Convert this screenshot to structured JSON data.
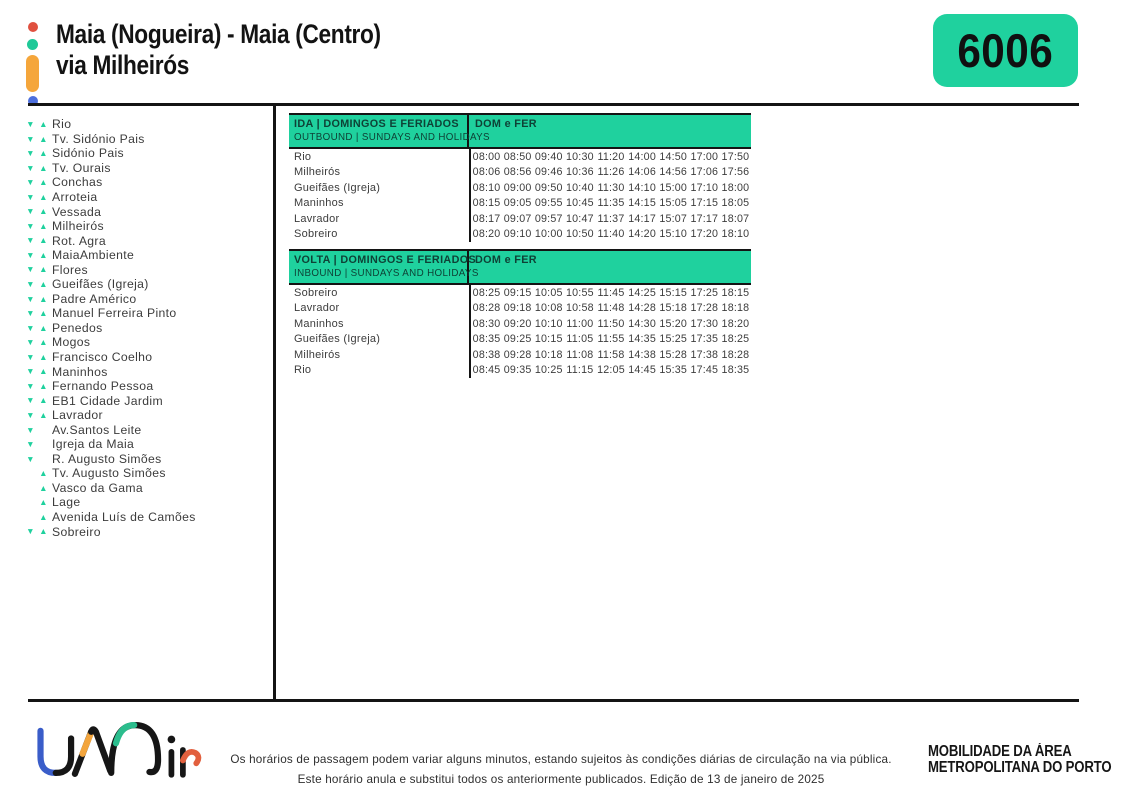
{
  "header": {
    "title_line1": "Maia (Nogueira) - Maia (Centro)",
    "title_line2": "via Milheirós",
    "route_number": "6006"
  },
  "colors": {
    "accent_green": "#1fd19e",
    "logo_red": "#e0503f",
    "logo_green": "#1fc998",
    "logo_orange": "#f5a63b",
    "logo_blue": "#4d6fdd"
  },
  "icons": {
    "down_triangle": "▼",
    "up_triangle": "▲"
  },
  "stops": [
    {
      "name": "Rio",
      "down": true,
      "up": true
    },
    {
      "name": "Tv. Sidónio Pais",
      "down": true,
      "up": true
    },
    {
      "name": "Sidónio Pais",
      "down": true,
      "up": true
    },
    {
      "name": "Tv. Ourais",
      "down": true,
      "up": true
    },
    {
      "name": "Conchas",
      "down": true,
      "up": true
    },
    {
      "name": "Arroteia",
      "down": true,
      "up": true
    },
    {
      "name": "Vessada",
      "down": true,
      "up": true
    },
    {
      "name": "Milheirós",
      "down": true,
      "up": true
    },
    {
      "name": "Rot. Agra",
      "down": true,
      "up": true
    },
    {
      "name": "MaiaAmbiente",
      "down": true,
      "up": true
    },
    {
      "name": "Flores",
      "down": true,
      "up": true
    },
    {
      "name": "Gueifães (Igreja)",
      "down": true,
      "up": true
    },
    {
      "name": "Padre Américo",
      "down": true,
      "up": true
    },
    {
      "name": "Manuel Ferreira Pinto",
      "down": true,
      "up": true
    },
    {
      "name": "Penedos",
      "down": true,
      "up": true
    },
    {
      "name": "Mogos",
      "down": true,
      "up": true
    },
    {
      "name": "Francisco Coelho",
      "down": true,
      "up": true
    },
    {
      "name": "Maninhos",
      "down": true,
      "up": true
    },
    {
      "name": "Fernando Pessoa",
      "down": true,
      "up": true
    },
    {
      "name": "EB1 Cidade Jardim",
      "down": true,
      "up": true
    },
    {
      "name": "Lavrador",
      "down": true,
      "up": true
    },
    {
      "name": "Av.Santos Leite",
      "down": true,
      "up": false
    },
    {
      "name": "Igreja da Maia",
      "down": true,
      "up": false
    },
    {
      "name": "R. Augusto Simões",
      "down": true,
      "up": false
    },
    {
      "name": "Tv. Augusto Simões",
      "down": false,
      "up": true
    },
    {
      "name": "Vasco da Gama",
      "down": false,
      "up": true
    },
    {
      "name": "Lage",
      "down": false,
      "up": true
    },
    {
      "name": "Avenida Luís de Camões",
      "down": false,
      "up": true
    },
    {
      "name": "Sobreiro",
      "down": true,
      "up": true
    }
  ],
  "tables": [
    {
      "title_pt": "IDA | DOMINGOS E FERIADOS",
      "title_en": "OUTBOUND | SUNDAYS AND HOLIDAYS",
      "period": "DOM e FER",
      "rows": [
        {
          "stop": "Rio",
          "times": [
            "08:00",
            "08:50",
            "09:40",
            "10:30",
            "11:20",
            "14:00",
            "14:50",
            "17:00",
            "17:50"
          ]
        },
        {
          "stop": "Milheirós",
          "times": [
            "08:06",
            "08:56",
            "09:46",
            "10:36",
            "11:26",
            "14:06",
            "14:56",
            "17:06",
            "17:56"
          ]
        },
        {
          "stop": "Gueifães (Igreja)",
          "times": [
            "08:10",
            "09:00",
            "09:50",
            "10:40",
            "11:30",
            "14:10",
            "15:00",
            "17:10",
            "18:00"
          ]
        },
        {
          "stop": "Maninhos",
          "times": [
            "08:15",
            "09:05",
            "09:55",
            "10:45",
            "11:35",
            "14:15",
            "15:05",
            "17:15",
            "18:05"
          ]
        },
        {
          "stop": "Lavrador",
          "times": [
            "08:17",
            "09:07",
            "09:57",
            "10:47",
            "11:37",
            "14:17",
            "15:07",
            "17:17",
            "18:07"
          ]
        },
        {
          "stop": "Sobreiro",
          "times": [
            "08:20",
            "09:10",
            "10:00",
            "10:50",
            "11:40",
            "14:20",
            "15:10",
            "17:20",
            "18:10"
          ]
        }
      ]
    },
    {
      "title_pt": "VOLTA | DOMINGOS E FERIADOS",
      "title_en": "INBOUND | SUNDAYS AND HOLIDAYS",
      "period": "DOM e FER",
      "rows": [
        {
          "stop": "Sobreiro",
          "times": [
            "08:25",
            "09:15",
            "10:05",
            "10:55",
            "11:45",
            "14:25",
            "15:15",
            "17:25",
            "18:15"
          ]
        },
        {
          "stop": "Lavrador",
          "times": [
            "08:28",
            "09:18",
            "10:08",
            "10:58",
            "11:48",
            "14:28",
            "15:18",
            "17:28",
            "18:18"
          ]
        },
        {
          "stop": "Maninhos",
          "times": [
            "08:30",
            "09:20",
            "10:10",
            "11:00",
            "11:50",
            "14:30",
            "15:20",
            "17:30",
            "18:20"
          ]
        },
        {
          "stop": "Gueifães (Igreja)",
          "times": [
            "08:35",
            "09:25",
            "10:15",
            "11:05",
            "11:55",
            "14:35",
            "15:25",
            "17:35",
            "18:25"
          ]
        },
        {
          "stop": "Milheirós",
          "times": [
            "08:38",
            "09:28",
            "10:18",
            "11:08",
            "11:58",
            "14:38",
            "15:28",
            "17:38",
            "18:28"
          ]
        },
        {
          "stop": "Rio",
          "times": [
            "08:45",
            "09:35",
            "10:25",
            "11:15",
            "12:05",
            "14:45",
            "15:35",
            "17:45",
            "18:35"
          ]
        }
      ]
    }
  ],
  "footer": {
    "note1": "Os horários de passagem podem variar alguns minutos, estando sujeitos às condições diárias de circulação na via pública.",
    "note2": "Este horário anula e substitui todos os anteriormente publicados. Edição de 13 de janeiro de 2025",
    "brand": "UNir",
    "org_line1": "MOBILIDADE DA ÁREA",
    "org_line2": "METROPOLITANA DO PORTO"
  }
}
